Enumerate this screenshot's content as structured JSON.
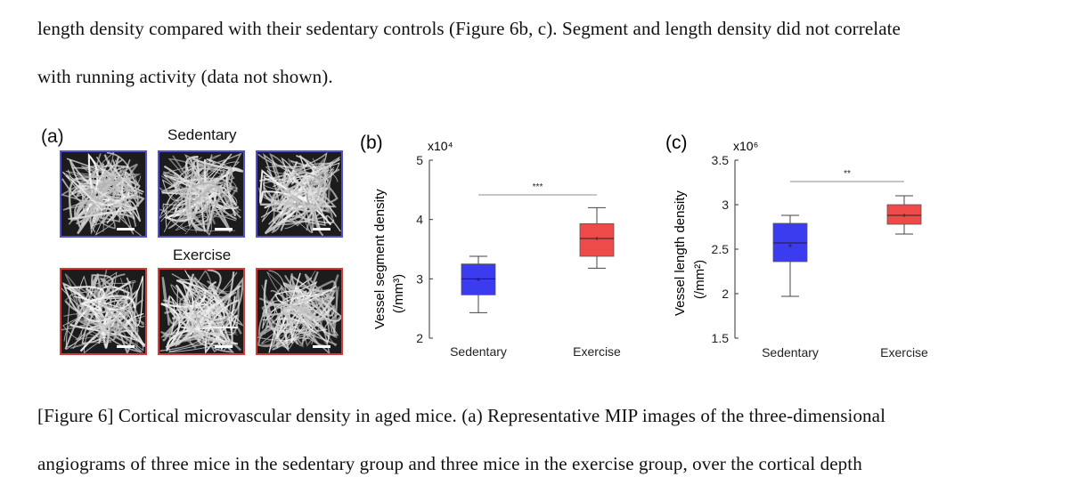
{
  "text": {
    "line1": "length density compared with their sedentary controls (Figure 6b, c). Segment and length density did not correlate",
    "line2": "with running activity (data not shown).",
    "caption1": "[Figure 6] Cortical microvascular density in aged mice. (a) Representative MIP images of the three-dimensional",
    "caption2": "angiograms of three mice in the sedentary group and three mice in the exercise group, over the cortical depth"
  },
  "panel_a": {
    "label": "(a)",
    "top_title": "Sedentary",
    "bottom_title": "Exercise",
    "images": [
      {
        "group": "Sedentary",
        "color": "#4f4fcf"
      },
      {
        "group": "Sedentary",
        "color": "#4f4fcf"
      },
      {
        "group": "Sedentary",
        "color": "#4f4fcf"
      },
      {
        "group": "Exercise",
        "color": "#d33a3a"
      },
      {
        "group": "Exercise",
        "color": "#d33a3a"
      },
      {
        "group": "Exercise",
        "color": "#d33a3a"
      }
    ]
  },
  "chart_data": [
    {
      "type": "box",
      "panel_label": "(b)",
      "ylabel": "Vessel segment density",
      "yunit": "(/mm³)",
      "multiplier": "x10⁴",
      "ylim": [
        2,
        5
      ],
      "yticks": [
        "2",
        "3",
        "4",
        "5"
      ],
      "significance": "***",
      "categories": [
        "Sedentary",
        "Exercise"
      ],
      "colors": [
        "#3b3bef",
        "#ef4a4a"
      ],
      "boxes": [
        {
          "min": 2.43,
          "q1": 2.73,
          "median": 3.0,
          "q3": 3.25,
          "max": 3.38,
          "mean": 2.99
        },
        {
          "min": 3.18,
          "q1": 3.38,
          "median": 3.68,
          "q3": 3.93,
          "max": 4.2,
          "mean": 3.68
        }
      ]
    },
    {
      "type": "box",
      "panel_label": "(c)",
      "ylabel": "Vessel length density",
      "yunit": "(/mm²)",
      "multiplier": "x10⁶",
      "ylim": [
        1.5,
        3.5
      ],
      "yticks": [
        "1.5",
        "2",
        "2.5",
        "3",
        "3.5"
      ],
      "significance": "**",
      "categories": [
        "Sedentary",
        "Exercise"
      ],
      "colors": [
        "#3b3bef",
        "#ef4a4a"
      ],
      "boxes": [
        {
          "min": 1.97,
          "q1": 2.36,
          "median": 2.57,
          "q3": 2.79,
          "max": 2.88,
          "mean": 2.54
        },
        {
          "min": 2.67,
          "q1": 2.78,
          "median": 2.88,
          "q3": 3.0,
          "max": 3.1,
          "mean": 2.88
        }
      ]
    }
  ]
}
